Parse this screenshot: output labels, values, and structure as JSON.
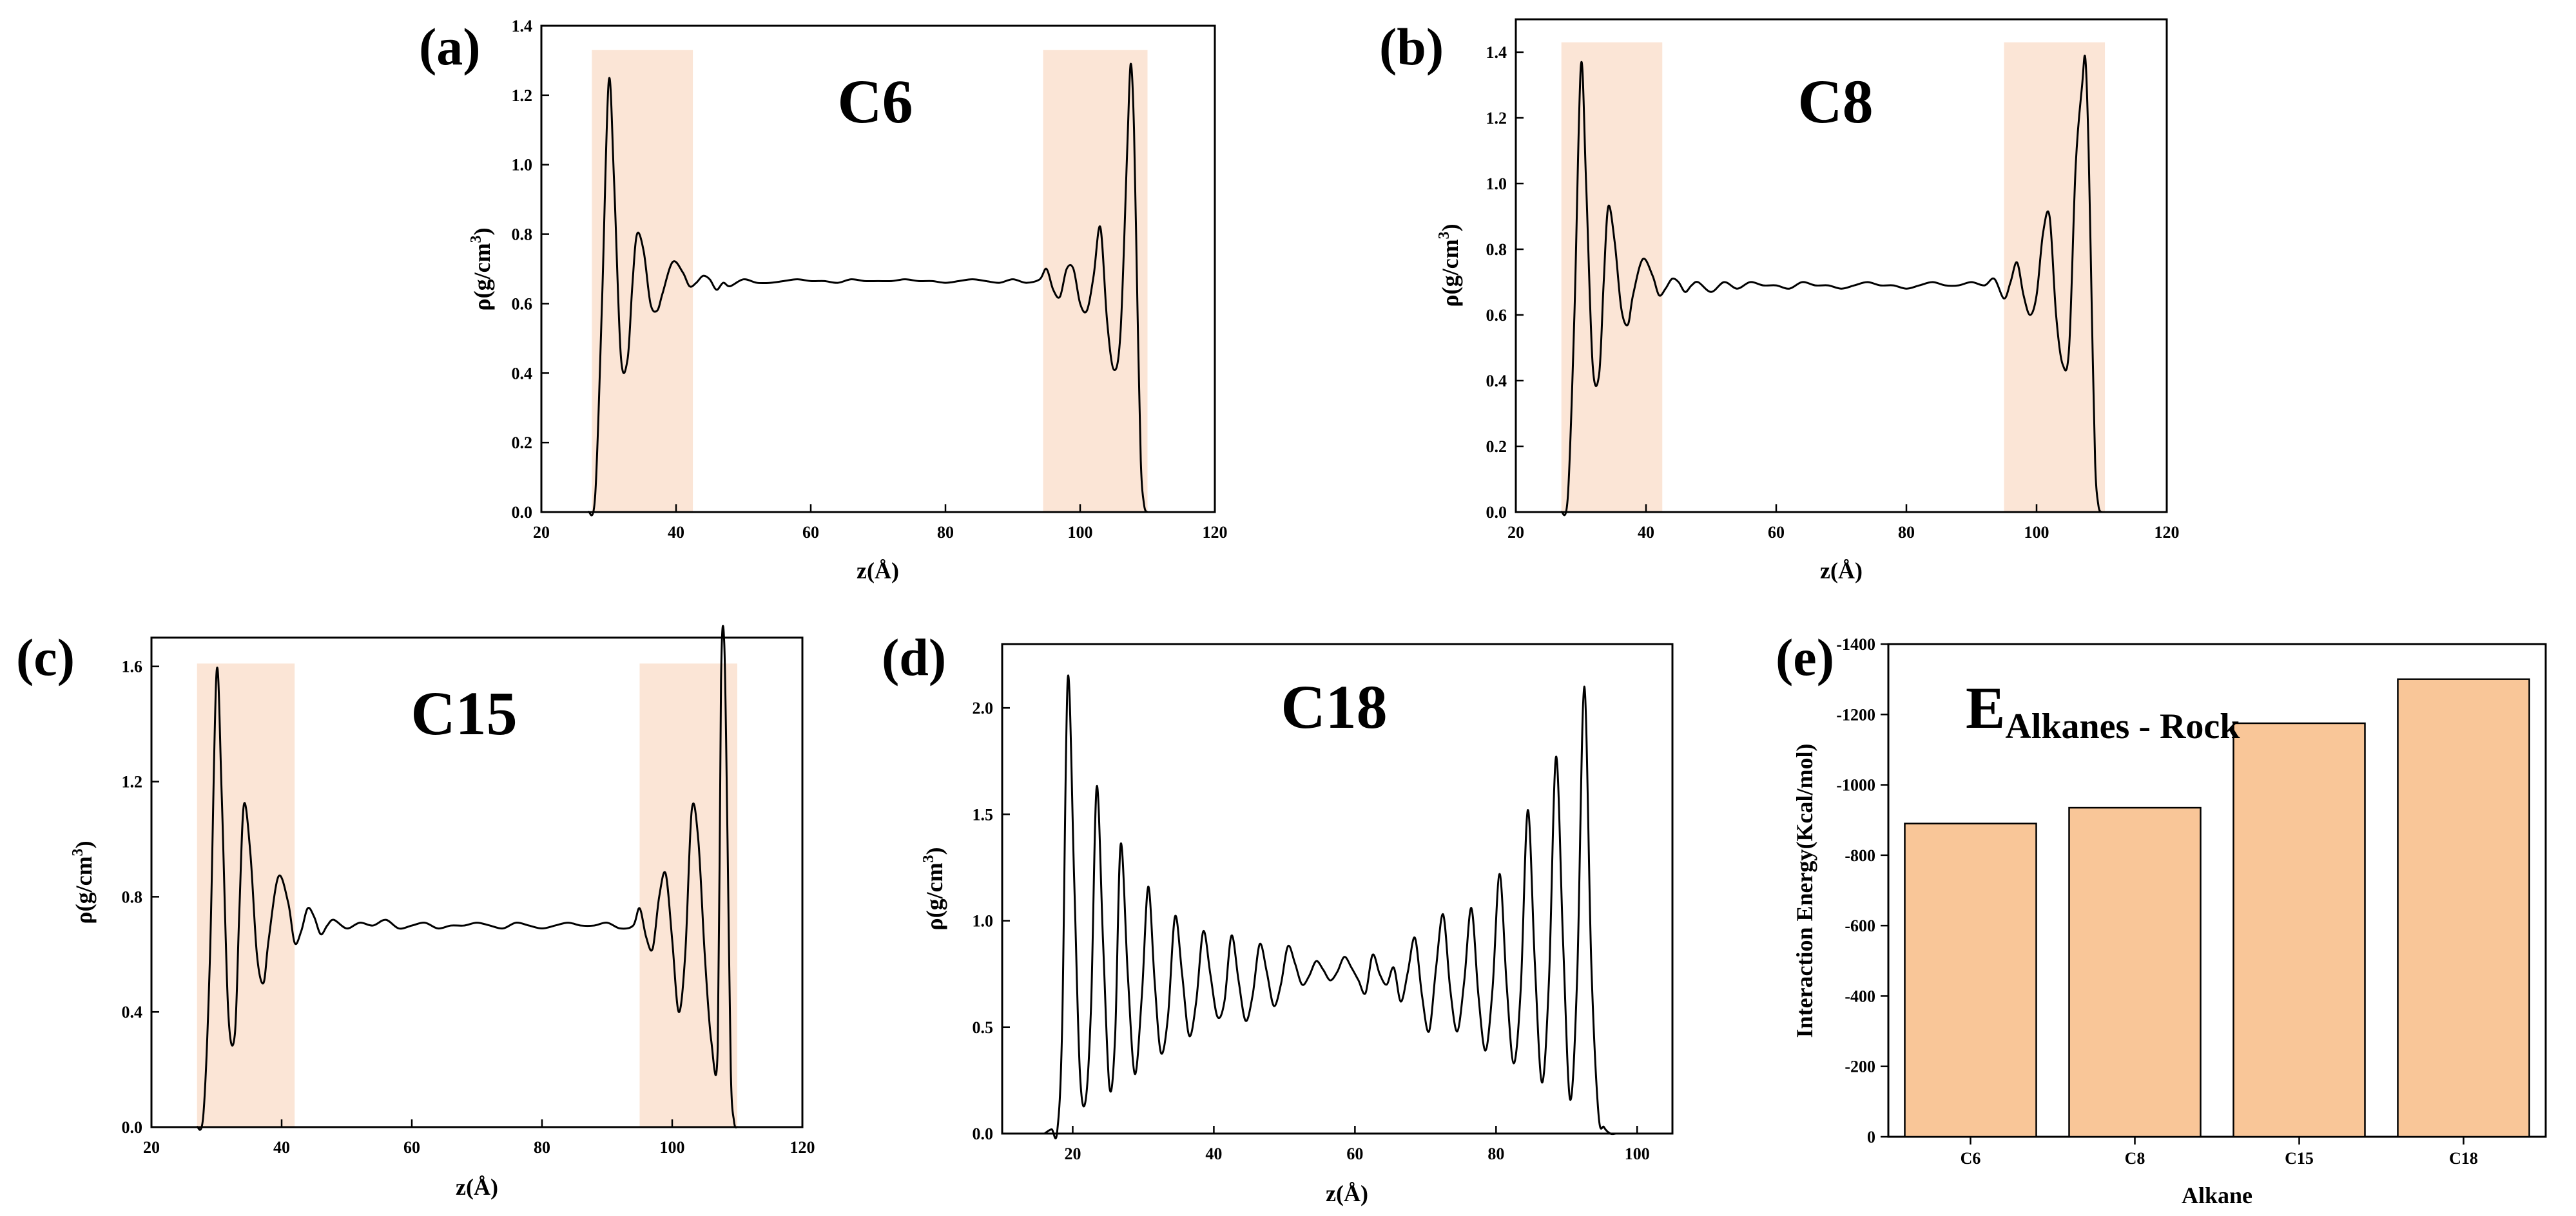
{
  "colors": {
    "band": "#fbe5d6",
    "bar": "#f9c698",
    "line": "#000000"
  },
  "chart_data": [
    {
      "id": "a",
      "panel_label": "(a)",
      "type": "line",
      "title": "C6",
      "xlabel": "z(Å)",
      "ylabel": "ρ(g/cm3)",
      "ylabel_main": "ρ(g/cm",
      "ylabel_sup": "3",
      "ylabel_end": ")",
      "xlim": [
        20,
        120
      ],
      "ylim": [
        0,
        1.4
      ],
      "xticks": [
        20,
        40,
        60,
        80,
        100,
        120
      ],
      "yticks": [
        0.0,
        0.2,
        0.4,
        0.6,
        0.8,
        1.0,
        1.2,
        1.4
      ],
      "xtick_labels": [
        "20",
        "40",
        "60",
        "80",
        "100",
        "120"
      ],
      "ytick_labels": [
        "0.0",
        "0.2",
        "0.4",
        "0.6",
        "0.8",
        "1.0",
        "1.2",
        "1.4"
      ],
      "shaded_regions": [
        [
          27.5,
          42.5
        ],
        [
          94.5,
          110
        ]
      ],
      "band_top": 1.33,
      "series": [
        {
          "name": "density",
          "x": [
            27.0,
            28.0,
            29.0,
            30.0,
            30.8,
            31.8,
            32.8,
            33.5,
            34.2,
            35.2,
            36.2,
            37.2,
            38.0,
            39.5,
            41.0,
            42.0,
            43.0,
            44.0,
            45.0,
            46.0,
            47.0,
            48.0,
            50.0,
            52.0,
            54.0,
            56.0,
            58.0,
            60.0,
            62.0,
            64.0,
            66.0,
            68.0,
            70.0,
            72.0,
            74.0,
            76.0,
            78.0,
            80.0,
            82.0,
            84.0,
            86.0,
            88.0,
            90.0,
            92.0,
            94.0,
            95.0,
            96.0,
            97.0,
            98.0,
            99.0,
            100.0,
            101.0,
            102.0,
            103.0,
            104.0,
            105.0,
            106.0,
            107.0,
            107.5,
            108.0,
            108.5,
            109.0,
            109.5,
            110.0
          ],
          "y": [
            0.0,
            0.05,
            0.6,
            1.24,
            0.95,
            0.45,
            0.44,
            0.65,
            0.8,
            0.75,
            0.6,
            0.58,
            0.63,
            0.72,
            0.69,
            0.65,
            0.66,
            0.68,
            0.67,
            0.64,
            0.66,
            0.65,
            0.67,
            0.66,
            0.66,
            0.665,
            0.67,
            0.665,
            0.665,
            0.66,
            0.67,
            0.665,
            0.665,
            0.665,
            0.67,
            0.665,
            0.665,
            0.66,
            0.665,
            0.67,
            0.665,
            0.66,
            0.67,
            0.66,
            0.67,
            0.7,
            0.64,
            0.62,
            0.7,
            0.7,
            0.6,
            0.58,
            0.68,
            0.82,
            0.55,
            0.41,
            0.52,
            1.05,
            1.29,
            1.1,
            0.6,
            0.15,
            0.02,
            0.0
          ]
        }
      ]
    },
    {
      "id": "b",
      "panel_label": "(b)",
      "type": "line",
      "title": "C8",
      "xlabel": "z(Å)",
      "ylabel": "ρ(g/cm3)",
      "ylabel_main": "ρ(g/cm",
      "ylabel_sup": "3",
      "ylabel_end": ")",
      "xlim": [
        20,
        120
      ],
      "ylim": [
        0,
        1.5
      ],
      "xticks": [
        20,
        40,
        60,
        80,
        100,
        120
      ],
      "yticks": [
        0.0,
        0.2,
        0.4,
        0.6,
        0.8,
        1.0,
        1.2,
        1.4
      ],
      "xtick_labels": [
        "20",
        "40",
        "60",
        "80",
        "100",
        "120"
      ],
      "ytick_labels": [
        "0.0",
        "0.2",
        "0.4",
        "0.6",
        "0.8",
        "1.0",
        "1.2",
        "1.4"
      ],
      "shaded_regions": [
        [
          27,
          42.5
        ],
        [
          95,
          110.5
        ]
      ],
      "band_top": 1.43,
      "series": [
        {
          "name": "density",
          "x": [
            27.0,
            28.0,
            29.0,
            30.0,
            30.8,
            31.8,
            32.8,
            33.5,
            34.2,
            35.2,
            36.2,
            37.2,
            38.0,
            39.5,
            41.0,
            42.0,
            43.0,
            44.0,
            45.0,
            46.0,
            47.0,
            48.0,
            50.0,
            52.0,
            54.0,
            56.0,
            58.0,
            60.0,
            62.0,
            64.0,
            66.0,
            68.0,
            70.0,
            72.0,
            74.0,
            76.0,
            78.0,
            80.0,
            82.0,
            84.0,
            86.0,
            88.0,
            90.0,
            92.0,
            93.5,
            95.0,
            96.0,
            97.0,
            98.0,
            99.0,
            100.0,
            101.0,
            102.0,
            103.0,
            104.0,
            105.0,
            106.0,
            107.0,
            107.5,
            108.0,
            108.5,
            109.0,
            109.5,
            110.0
          ],
          "y": [
            0.0,
            0.05,
            0.6,
            1.36,
            1.0,
            0.45,
            0.42,
            0.7,
            0.93,
            0.82,
            0.62,
            0.57,
            0.66,
            0.77,
            0.72,
            0.66,
            0.68,
            0.71,
            0.7,
            0.67,
            0.69,
            0.7,
            0.67,
            0.7,
            0.68,
            0.7,
            0.69,
            0.69,
            0.68,
            0.7,
            0.69,
            0.69,
            0.68,
            0.69,
            0.7,
            0.69,
            0.69,
            0.68,
            0.69,
            0.7,
            0.69,
            0.69,
            0.7,
            0.69,
            0.71,
            0.65,
            0.7,
            0.76,
            0.66,
            0.6,
            0.66,
            0.85,
            0.9,
            0.6,
            0.45,
            0.5,
            1.05,
            1.3,
            1.38,
            1.1,
            0.6,
            0.15,
            0.02,
            0.0
          ]
        }
      ]
    },
    {
      "id": "c",
      "panel_label": "(c)",
      "type": "line",
      "title": "C15",
      "xlabel": "z(Å)",
      "ylabel": "ρ(g/cm3)",
      "ylabel_main": "ρ(g/cm",
      "ylabel_sup": "3",
      "ylabel_end": ")",
      "xlim": [
        20,
        120
      ],
      "ylim": [
        0,
        1.7
      ],
      "xticks": [
        20,
        40,
        60,
        80,
        100,
        120
      ],
      "yticks": [
        0.0,
        0.4,
        0.8,
        1.2,
        1.6
      ],
      "xtick_labels": [
        "20",
        "40",
        "60",
        "80",
        "100",
        "120"
      ],
      "ytick_labels": [
        "0.0",
        "0.4",
        "0.8",
        "1.2",
        "1.6"
      ],
      "shaded_regions": [
        [
          27,
          42
        ],
        [
          95,
          110
        ]
      ],
      "band_top": 1.61,
      "series": [
        {
          "name": "density",
          "x": [
            27.0,
            28.0,
            29.0,
            30.0,
            30.8,
            31.8,
            32.8,
            33.5,
            34.2,
            35.2,
            36.2,
            37.2,
            38.0,
            39.5,
            41.0,
            42.0,
            43.0,
            44.0,
            45.0,
            46.0,
            47.0,
            48.0,
            50.0,
            52.0,
            54.0,
            56.0,
            58.0,
            60.0,
            62.0,
            64.0,
            66.0,
            68.0,
            70.0,
            72.0,
            74.0,
            76.0,
            78.0,
            80.0,
            82.0,
            84.0,
            86.0,
            88.0,
            90.0,
            92.0,
            94.0,
            95.0,
            96.0,
            97.0,
            98.0,
            99.0,
            100.0,
            101.0,
            102.0,
            103.0,
            104.0,
            105.0,
            106.0,
            107.0,
            107.5,
            108.0,
            108.5,
            109.0,
            109.5,
            110.0
          ],
          "y": [
            0.0,
            0.05,
            0.6,
            1.58,
            1.15,
            0.4,
            0.32,
            0.75,
            1.12,
            0.95,
            0.6,
            0.5,
            0.65,
            0.87,
            0.78,
            0.64,
            0.68,
            0.76,
            0.73,
            0.67,
            0.7,
            0.72,
            0.69,
            0.71,
            0.7,
            0.72,
            0.69,
            0.7,
            0.71,
            0.69,
            0.7,
            0.7,
            0.71,
            0.7,
            0.69,
            0.71,
            0.7,
            0.69,
            0.7,
            0.71,
            0.7,
            0.7,
            0.71,
            0.69,
            0.7,
            0.76,
            0.66,
            0.62,
            0.8,
            0.88,
            0.65,
            0.4,
            0.6,
            1.1,
            1.0,
            0.6,
            0.3,
            0.28,
            1.55,
            1.68,
            1.0,
            0.2,
            0.02,
            0.0
          ]
        }
      ]
    },
    {
      "id": "d",
      "panel_label": "(d)",
      "type": "line",
      "title": "C18",
      "xlabel": "z(Å)",
      "ylabel": "ρ(g/cm3)",
      "ylabel_main": "ρ(g/cm",
      "ylabel_sup": "3",
      "ylabel_end": ")",
      "xlim": [
        10,
        105
      ],
      "ylim": [
        0,
        2.3
      ],
      "xticks": [
        20,
        40,
        60,
        80,
        100
      ],
      "yticks": [
        0.0,
        0.5,
        1.0,
        1.5,
        2.0
      ],
      "xtick_labels": [
        "20",
        "40",
        "60",
        "80",
        "100"
      ],
      "ytick_labels": [
        "0.0",
        "0.5",
        "1.0",
        "1.5",
        "2.0"
      ],
      "shaded_regions": [],
      "band_top": 0,
      "series": [
        {
          "name": "density",
          "x": [
            16.0,
            17.0,
            17.8,
            18.5,
            19.3,
            20.2,
            21.0,
            21.8,
            22.6,
            23.4,
            24.3,
            25.2,
            26.0,
            26.8,
            27.8,
            28.8,
            29.8,
            30.7,
            31.6,
            32.5,
            33.5,
            34.5,
            35.5,
            36.5,
            37.5,
            38.5,
            39.5,
            40.5,
            41.5,
            42.5,
            43.5,
            44.5,
            45.5,
            46.5,
            47.5,
            48.5,
            49.5,
            50.5,
            51.5,
            52.5,
            53.5,
            54.5,
            55.5,
            56.5,
            57.5,
            58.5,
            59.5,
            60.5,
            61.5,
            62.5,
            63.5,
            64.5,
            65.5,
            66.5,
            67.5,
            68.5,
            69.5,
            70.5,
            71.5,
            72.5,
            73.5,
            74.5,
            75.5,
            76.5,
            77.5,
            78.5,
            79.5,
            80.5,
            81.5,
            82.5,
            83.5,
            84.5,
            85.5,
            86.5,
            87.5,
            88.5,
            89.5,
            90.5,
            91.5,
            92.5,
            93.5,
            94.5,
            95.3,
            96.2,
            97.0,
            97.8,
            98.5
          ],
          "y": [
            0.0,
            0.02,
            0.01,
            0.5,
            2.14,
            1.2,
            0.3,
            0.15,
            0.6,
            1.63,
            0.9,
            0.22,
            0.45,
            1.36,
            0.75,
            0.28,
            0.65,
            1.16,
            0.72,
            0.38,
            0.55,
            1.02,
            0.75,
            0.46,
            0.62,
            0.95,
            0.75,
            0.55,
            0.62,
            0.93,
            0.72,
            0.53,
            0.65,
            0.89,
            0.76,
            0.6,
            0.7,
            0.88,
            0.8,
            0.7,
            0.74,
            0.81,
            0.77,
            0.72,
            0.76,
            0.83,
            0.78,
            0.72,
            0.66,
            0.84,
            0.75,
            0.7,
            0.78,
            0.62,
            0.76,
            0.92,
            0.65,
            0.48,
            0.78,
            1.03,
            0.68,
            0.48,
            0.72,
            1.06,
            0.65,
            0.39,
            0.68,
            1.22,
            0.7,
            0.33,
            0.68,
            1.52,
            0.8,
            0.24,
            0.72,
            1.77,
            0.9,
            0.16,
            0.74,
            2.1,
            0.8,
            0.1,
            0.03,
            0.0,
            0.0,
            0.0,
            0.0
          ]
        }
      ]
    },
    {
      "id": "e",
      "panel_label": "(e)",
      "type": "bar",
      "title": "EAlkanes - Rock",
      "title_main": "E",
      "title_sub": "Alkanes - Rock",
      "xlabel": "Alkane",
      "ylabel": "Interaction Energy(Kcal/mol)",
      "categories": [
        "C6",
        "C8",
        "C15",
        "C18"
      ],
      "values": [
        -890,
        -935,
        -1175,
        -1300
      ],
      "ylim": [
        0,
        -1400
      ],
      "yticks": [
        0,
        -200,
        -400,
        -600,
        -800,
        -1000,
        -1200,
        -1400
      ],
      "ytick_labels": [
        "0",
        "-200",
        "-400",
        "-600",
        "-800",
        "-1000",
        "-1200",
        "-1400"
      ]
    }
  ]
}
